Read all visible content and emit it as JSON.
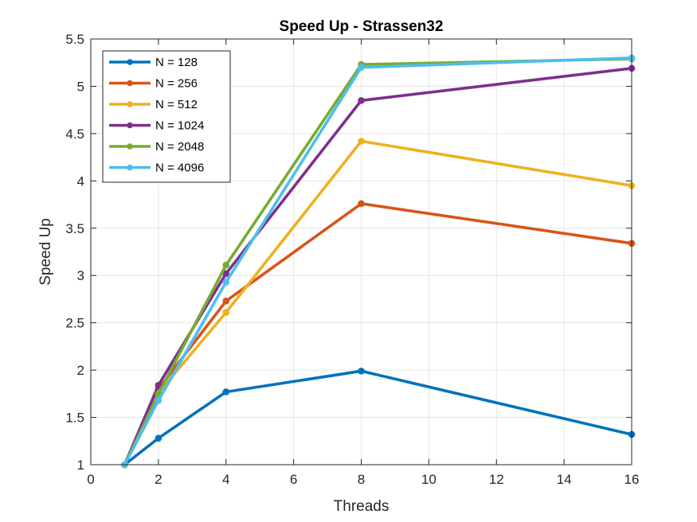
{
  "chart_data": {
    "type": "line",
    "title": "Speed Up - Strassen32",
    "xlabel": "Threads",
    "ylabel": "Speed Up",
    "xlim": [
      0,
      16
    ],
    "ylim": [
      1,
      5.5
    ],
    "xticks": [
      0,
      2,
      4,
      6,
      8,
      10,
      12,
      14,
      16
    ],
    "yticks": [
      1,
      1.5,
      2,
      2.5,
      3,
      3.5,
      4,
      4.5,
      5,
      5.5
    ],
    "grid": true,
    "legend_position": "top-left",
    "x": [
      1,
      2,
      4,
      8,
      16
    ],
    "series": [
      {
        "name": "N = 128",
        "color": "#0072BD",
        "values": [
          1,
          1.28,
          1.77,
          1.99,
          1.32
        ]
      },
      {
        "name": "N = 256",
        "color": "#D95319",
        "values": [
          1,
          1.8,
          2.73,
          3.76,
          3.34
        ]
      },
      {
        "name": "N = 512",
        "color": "#EDB120",
        "values": [
          1,
          1.76,
          2.61,
          4.42,
          3.95
        ]
      },
      {
        "name": "N = 1024",
        "color": "#7E2F8E",
        "values": [
          1,
          1.84,
          3.02,
          4.85,
          5.19
        ]
      },
      {
        "name": "N = 2048",
        "color": "#77AC30",
        "values": [
          1,
          1.75,
          3.11,
          5.23,
          5.29
        ]
      },
      {
        "name": "N = 4096",
        "color": "#4DBEEE",
        "values": [
          1,
          1.68,
          2.93,
          5.2,
          5.3
        ]
      }
    ]
  }
}
